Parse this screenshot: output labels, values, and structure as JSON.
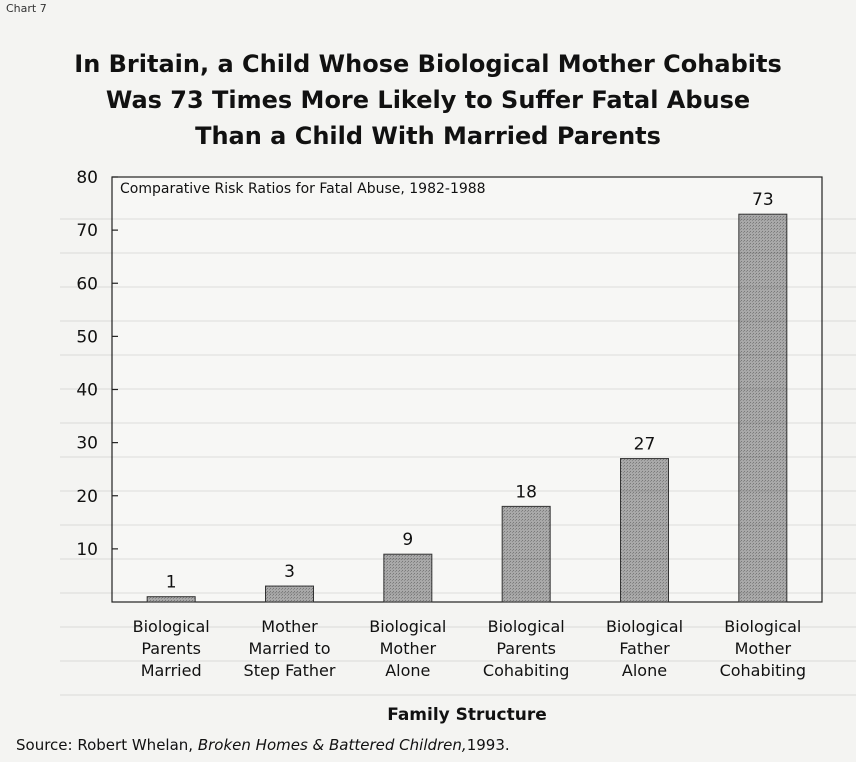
{
  "page_tag": "Chart 7",
  "title_lines": [
    "In Britain, a Child Whose Biological Mother Cohabits",
    "Was 73 Times More Likely to Suffer Fatal Abuse",
    "Than a Child With Married Parents"
  ],
  "source": {
    "prefix": "Source:",
    "author": "Robert Whelan,",
    "work": "Broken Homes & Battered Children,",
    "year": "1993."
  },
  "colors": {
    "bar_fill": "#a9a9a9",
    "bar_stroke": "#333333",
    "axis": "#222222"
  },
  "chart_data": {
    "type": "bar",
    "title": "Comparative Risk Ratios for Fatal Abuse, 1982-1988",
    "xlabel": "Family Structure",
    "ylabel": "",
    "ylim": [
      0,
      80
    ],
    "yticks": [
      10,
      20,
      30,
      40,
      50,
      60,
      70,
      80
    ],
    "categories": [
      [
        "Biological",
        "Parents",
        "Married"
      ],
      [
        "Mother",
        "Married to",
        "Step Father"
      ],
      [
        "Biological",
        "Mother",
        "Alone"
      ],
      [
        "Biological",
        "Parents",
        "Cohabiting"
      ],
      [
        "Biological",
        "Father",
        "Alone"
      ],
      [
        "Biological",
        "Mother",
        "Cohabiting"
      ]
    ],
    "values": [
      1,
      3,
      9,
      18,
      27,
      73
    ],
    "data_labels": [
      "1",
      "3",
      "9",
      "18",
      "27",
      "73"
    ],
    "grid": false
  }
}
